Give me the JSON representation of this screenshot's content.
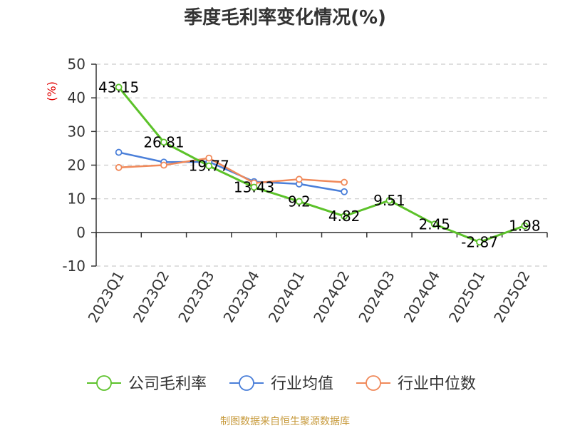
{
  "chart_data": {
    "type": "line",
    "title": "季度毛利率变化情况(%)",
    "ylabel": "(%)",
    "xlabel": "",
    "ylim": [
      -10,
      50
    ],
    "yticks": [
      -10,
      0,
      10,
      20,
      30,
      40,
      50
    ],
    "grid": true,
    "legend_position": "bottom",
    "categories": [
      "2023Q1",
      "2023Q2",
      "2023Q3",
      "2023Q4",
      "2024Q1",
      "2024Q2",
      "2024Q3",
      "2024Q4",
      "2025Q1",
      "2025Q2"
    ],
    "series": [
      {
        "name": "公司毛利率",
        "color": "#5cc22a",
        "values": [
          43.15,
          26.81,
          19.77,
          13.43,
          9.2,
          4.82,
          9.51,
          2.45,
          -2.87,
          1.98
        ],
        "labels": [
          "43.15",
          "26.81",
          "19.77",
          "13.43",
          "9.2",
          "4.82",
          "9.51",
          "2.45",
          "-2.87",
          "1.98"
        ]
      },
      {
        "name": "行业均值",
        "color": "#4a7fd9",
        "values": [
          23.8,
          20.9,
          21.0,
          15.1,
          14.4,
          12.1,
          null,
          null,
          null,
          null
        ]
      },
      {
        "name": "行业中位数",
        "color": "#f0895a",
        "values": [
          19.3,
          20.0,
          22.1,
          14.7,
          15.8,
          14.9,
          null,
          null,
          null,
          null
        ]
      }
    ]
  },
  "source": "制图数据来自恒生聚源数据库"
}
